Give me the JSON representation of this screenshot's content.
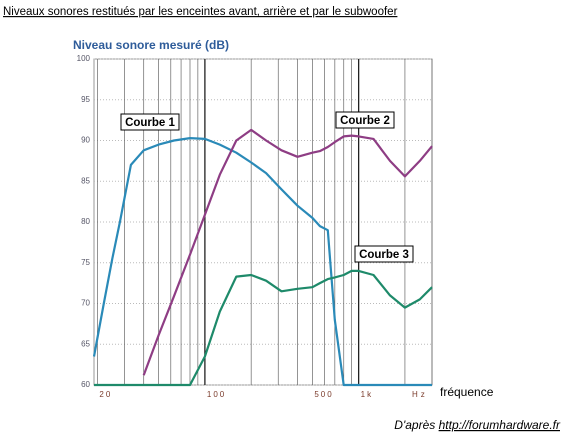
{
  "chart_data": {
    "type": "line",
    "title": "Niveaux sonores restitués par les enceintes avant, arrière et par le subwoofer",
    "y_label": "Niveau sonore mesuré (dB)",
    "x_label": "fréquence",
    "x_unit": "Hz",
    "source_prefix": "D'après",
    "source_link": "http://forumhardware.fr",
    "x": [
      19,
      22,
      25,
      28,
      33,
      40,
      50,
      63,
      80,
      100,
      125,
      160,
      200,
      250,
      315,
      400,
      500,
      560,
      630,
      700,
      800,
      900,
      1000,
      1250,
      1600,
      2000,
      2500,
      3000
    ],
    "series": [
      {
        "name": "Courbe 1",
        "color": "#2a8ab8",
        "values": [
          63.5,
          70,
          75.5,
          80,
          87,
          88.8,
          89.5,
          90,
          90.3,
          90.2,
          89.5,
          88.5,
          87.3,
          86,
          84,
          82,
          80.5,
          79.5,
          79,
          68,
          60,
          60,
          60,
          60,
          60,
          60,
          60,
          60
        ]
      },
      {
        "name": "Courbe 2",
        "color": "#8e3d84",
        "values": [
          null,
          null,
          null,
          null,
          null,
          61.2,
          66.1,
          70.9,
          76,
          80.9,
          85.8,
          90,
          91.3,
          90,
          88.8,
          88,
          88.5,
          88.7,
          89.2,
          89.8,
          90.5,
          90.6,
          90.5,
          90.2,
          87.5,
          85.6,
          87.5,
          89.3
        ]
      },
      {
        "name": "Courbe 3",
        "color": "#1e8a6a",
        "values": [
          60,
          60,
          60,
          60,
          60,
          60,
          60,
          60,
          60,
          63.5,
          69,
          73.3,
          73.5,
          72.8,
          71.5,
          71.8,
          72,
          72.5,
          73,
          73.2,
          73.5,
          74,
          74,
          73.5,
          71,
          69.5,
          70.5,
          72
        ]
      }
    ],
    "log_x": true,
    "xlim": [
      19,
      3000
    ],
    "xticks": [
      20,
      100,
      500,
      {
        "value": 1000,
        "label": "1k"
      }
    ],
    "xgrid_lines": [
      20,
      30,
      40,
      50,
      60,
      70,
      80,
      90,
      100,
      200,
      300,
      400,
      500,
      600,
      700,
      800,
      900,
      1000,
      2000,
      3000
    ],
    "ylim": [
      60,
      100
    ],
    "yticks": [
      60,
      65,
      70,
      75,
      80,
      85,
      90,
      95,
      100
    ],
    "grid": true
  }
}
